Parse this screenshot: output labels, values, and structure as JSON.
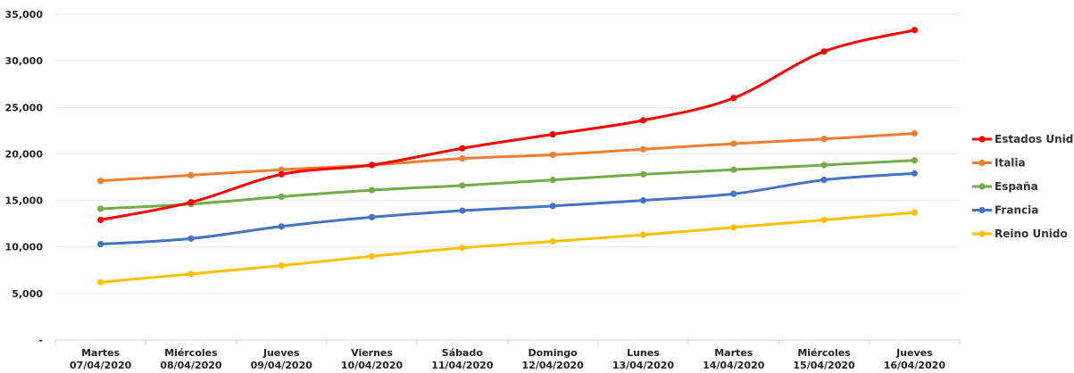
{
  "chart_data": {
    "type": "line",
    "title": "",
    "xlabel": "",
    "ylabel": "",
    "ylim": [
      0,
      35000
    ],
    "yticks": [
      0,
      5000,
      10000,
      15000,
      20000,
      25000,
      30000,
      35000
    ],
    "ytick_labels": [
      "-",
      "5,000",
      "10,000",
      "15,000",
      "20,000",
      "25,000",
      "30,000",
      "35,000"
    ],
    "grid": true,
    "legend": "right",
    "categories": [
      {
        "day": "Martes",
        "date": "07/04/2020"
      },
      {
        "day": "Miércoles",
        "date": "08/04/2020"
      },
      {
        "day": "Jueves",
        "date": "09/04/2020"
      },
      {
        "day": "Viernes",
        "date": "10/04/2020"
      },
      {
        "day": "Sábado",
        "date": "11/04/2020"
      },
      {
        "day": "Domingo",
        "date": "12/04/2020"
      },
      {
        "day": "Lunes",
        "date": "13/04/2020"
      },
      {
        "day": "Martes",
        "date": "14/04/2020"
      },
      {
        "day": "Miércoles",
        "date": "15/04/2020"
      },
      {
        "day": "Jueves",
        "date": "16/04/2020"
      }
    ],
    "series": [
      {
        "name": "Estados Unidos",
        "color": "#ff0000",
        "values": [
          12900,
          14800,
          17800,
          18800,
          20600,
          22100,
          23600,
          26000,
          31000,
          33300
        ]
      },
      {
        "name": "Italia",
        "color": "#ed7d31",
        "values": [
          17100,
          17700,
          18300,
          18800,
          19500,
          19900,
          20500,
          21100,
          21600,
          22200
        ]
      },
      {
        "name": "España",
        "color": "#70ad47",
        "values": [
          14100,
          14600,
          15400,
          16100,
          16600,
          17200,
          17800,
          18300,
          18800,
          19300
        ]
      },
      {
        "name": "Francia",
        "color": "#4472c4",
        "values": [
          10300,
          10900,
          12200,
          13200,
          13900,
          14400,
          15000,
          15700,
          17200,
          17900
        ]
      },
      {
        "name": "Reino Unido",
        "color": "#ffc000",
        "values": [
          6200,
          7100,
          8000,
          9000,
          9900,
          10600,
          11300,
          12100,
          12900,
          13700
        ]
      }
    ]
  }
}
